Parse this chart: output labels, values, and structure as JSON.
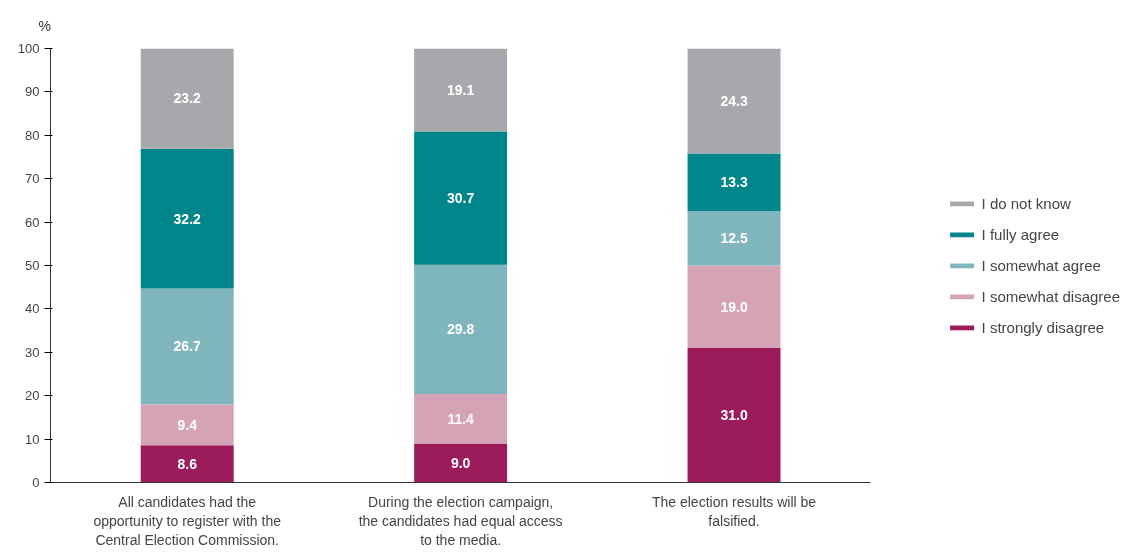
{
  "chart_data": {
    "type": "bar",
    "stacked": true,
    "ylabel": "%",
    "categories": [
      "All candidates had the opportunity to register with the Central Election Commission.",
      "During the election campaign, the candidates had equal access to the media.",
      "The election results will be falsified."
    ],
    "series": [
      {
        "name": "I strongly disagree",
        "color": "#9b1b5b",
        "values": [
          8.6,
          9.0,
          31.0
        ],
        "value_labels": [
          "8.6",
          "9.0",
          "31.0"
        ]
      },
      {
        "name": "I somewhat disagree",
        "color": "#d6a2b5",
        "values": [
          9.4,
          11.4,
          19.0
        ],
        "value_labels": [
          "9.4",
          "11.4",
          "19.0"
        ]
      },
      {
        "name": "I somewhat agree",
        "color": "#7fb5bc",
        "values": [
          26.7,
          29.8,
          12.5
        ],
        "value_labels": [
          "26.7",
          "29.8",
          "12.5"
        ]
      },
      {
        "name": "I fully agree",
        "color": "#00858b",
        "values": [
          32.2,
          30.7,
          13.3
        ],
        "value_labels": [
          "32.2",
          "30.7",
          "13.3"
        ]
      },
      {
        "name": "I do not know",
        "color": "#a7a8ab",
        "values": [
          23.2,
          19.1,
          24.3
        ],
        "value_labels": [
          "23.2",
          "19.1",
          "24.3"
        ]
      }
    ],
    "ylim": [
      0,
      100
    ],
    "yticks": [
      0,
      10,
      20,
      30,
      40,
      50,
      60,
      70,
      80,
      90,
      100
    ],
    "grid": false,
    "legend": "right"
  }
}
